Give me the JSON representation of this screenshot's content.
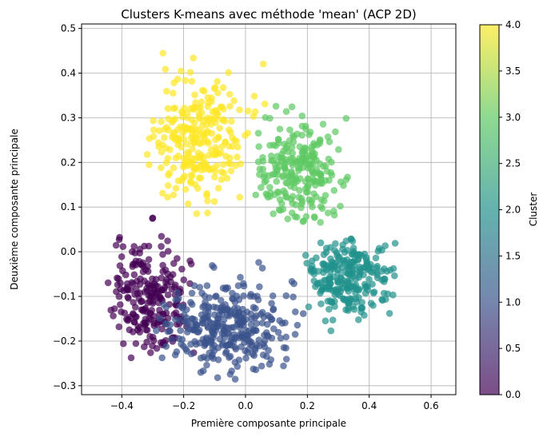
{
  "chart_data": {
    "type": "scatter",
    "title": "Clusters K-means avec méthode 'mean' (ACP 2D)",
    "xlabel": "Première composante principale",
    "ylabel": "Deuxième composante principale",
    "xlim": [
      -0.53,
      0.68
    ],
    "ylim": [
      -0.32,
      0.51
    ],
    "xticks": [
      -0.4,
      -0.2,
      0.0,
      0.2,
      0.4,
      0.6
    ],
    "yticks": [
      -0.3,
      -0.2,
      -0.1,
      0.0,
      0.1,
      0.2,
      0.3,
      0.4,
      0.5
    ],
    "xtick_labels": [
      "−0.4",
      "−0.2",
      "0.0",
      "0.2",
      "0.4",
      "0.6"
    ],
    "ytick_labels": [
      "−0.3",
      "−0.2",
      "−0.1",
      "0.0",
      "0.1",
      "0.2",
      "0.3",
      "0.4",
      "0.5"
    ],
    "grid": true,
    "colormap": "viridis",
    "marker_alpha": 0.7,
    "colorbar": {
      "label": "Cluster",
      "range": [
        0,
        4
      ],
      "ticks": [
        0.0,
        0.5,
        1.0,
        1.5,
        2.0,
        2.5,
        3.0,
        3.5,
        4.0
      ],
      "tick_labels": [
        "0.0",
        "0.5",
        "1.0",
        "1.5",
        "2.0",
        "2.5",
        "3.0",
        "3.5",
        "4.0"
      ],
      "stops": [
        "#440154",
        "#3b528b",
        "#21918c",
        "#5ec962",
        "#fde725"
      ]
    },
    "series": [
      {
        "cluster": 0,
        "color": "#440154",
        "count": 230,
        "center": [
          -0.3,
          -0.1
        ],
        "spread": [
          0.065,
          0.065
        ],
        "x_range": [
          -0.47,
          -0.16
        ],
        "y_range": [
          -0.24,
          0.08
        ]
      },
      {
        "cluster": 1,
        "color": "#3b528b",
        "count": 330,
        "center": [
          -0.06,
          -0.17
        ],
        "spread": [
          0.1,
          0.05
        ],
        "x_range": [
          -0.29,
          0.2
        ],
        "y_range": [
          -0.29,
          0.0
        ]
      },
      {
        "cluster": 2,
        "color": "#21918c",
        "count": 250,
        "center": [
          0.33,
          -0.05
        ],
        "spread": [
          0.07,
          0.045
        ],
        "x_range": [
          0.17,
          0.63
        ],
        "y_range": [
          -0.26,
          0.03
        ]
      },
      {
        "cluster": 3,
        "color": "#5ec962",
        "count": 240,
        "center": [
          0.17,
          0.18
        ],
        "spread": [
          0.07,
          0.055
        ],
        "x_range": [
          0.03,
          0.35
        ],
        "y_range": [
          0.02,
          0.35
        ]
      },
      {
        "cluster": 4,
        "color": "#fde725",
        "count": 260,
        "center": [
          -0.15,
          0.25
        ],
        "spread": [
          0.07,
          0.075
        ],
        "x_range": [
          -0.33,
          0.08
        ],
        "y_range": [
          0.08,
          0.48
        ]
      }
    ]
  }
}
